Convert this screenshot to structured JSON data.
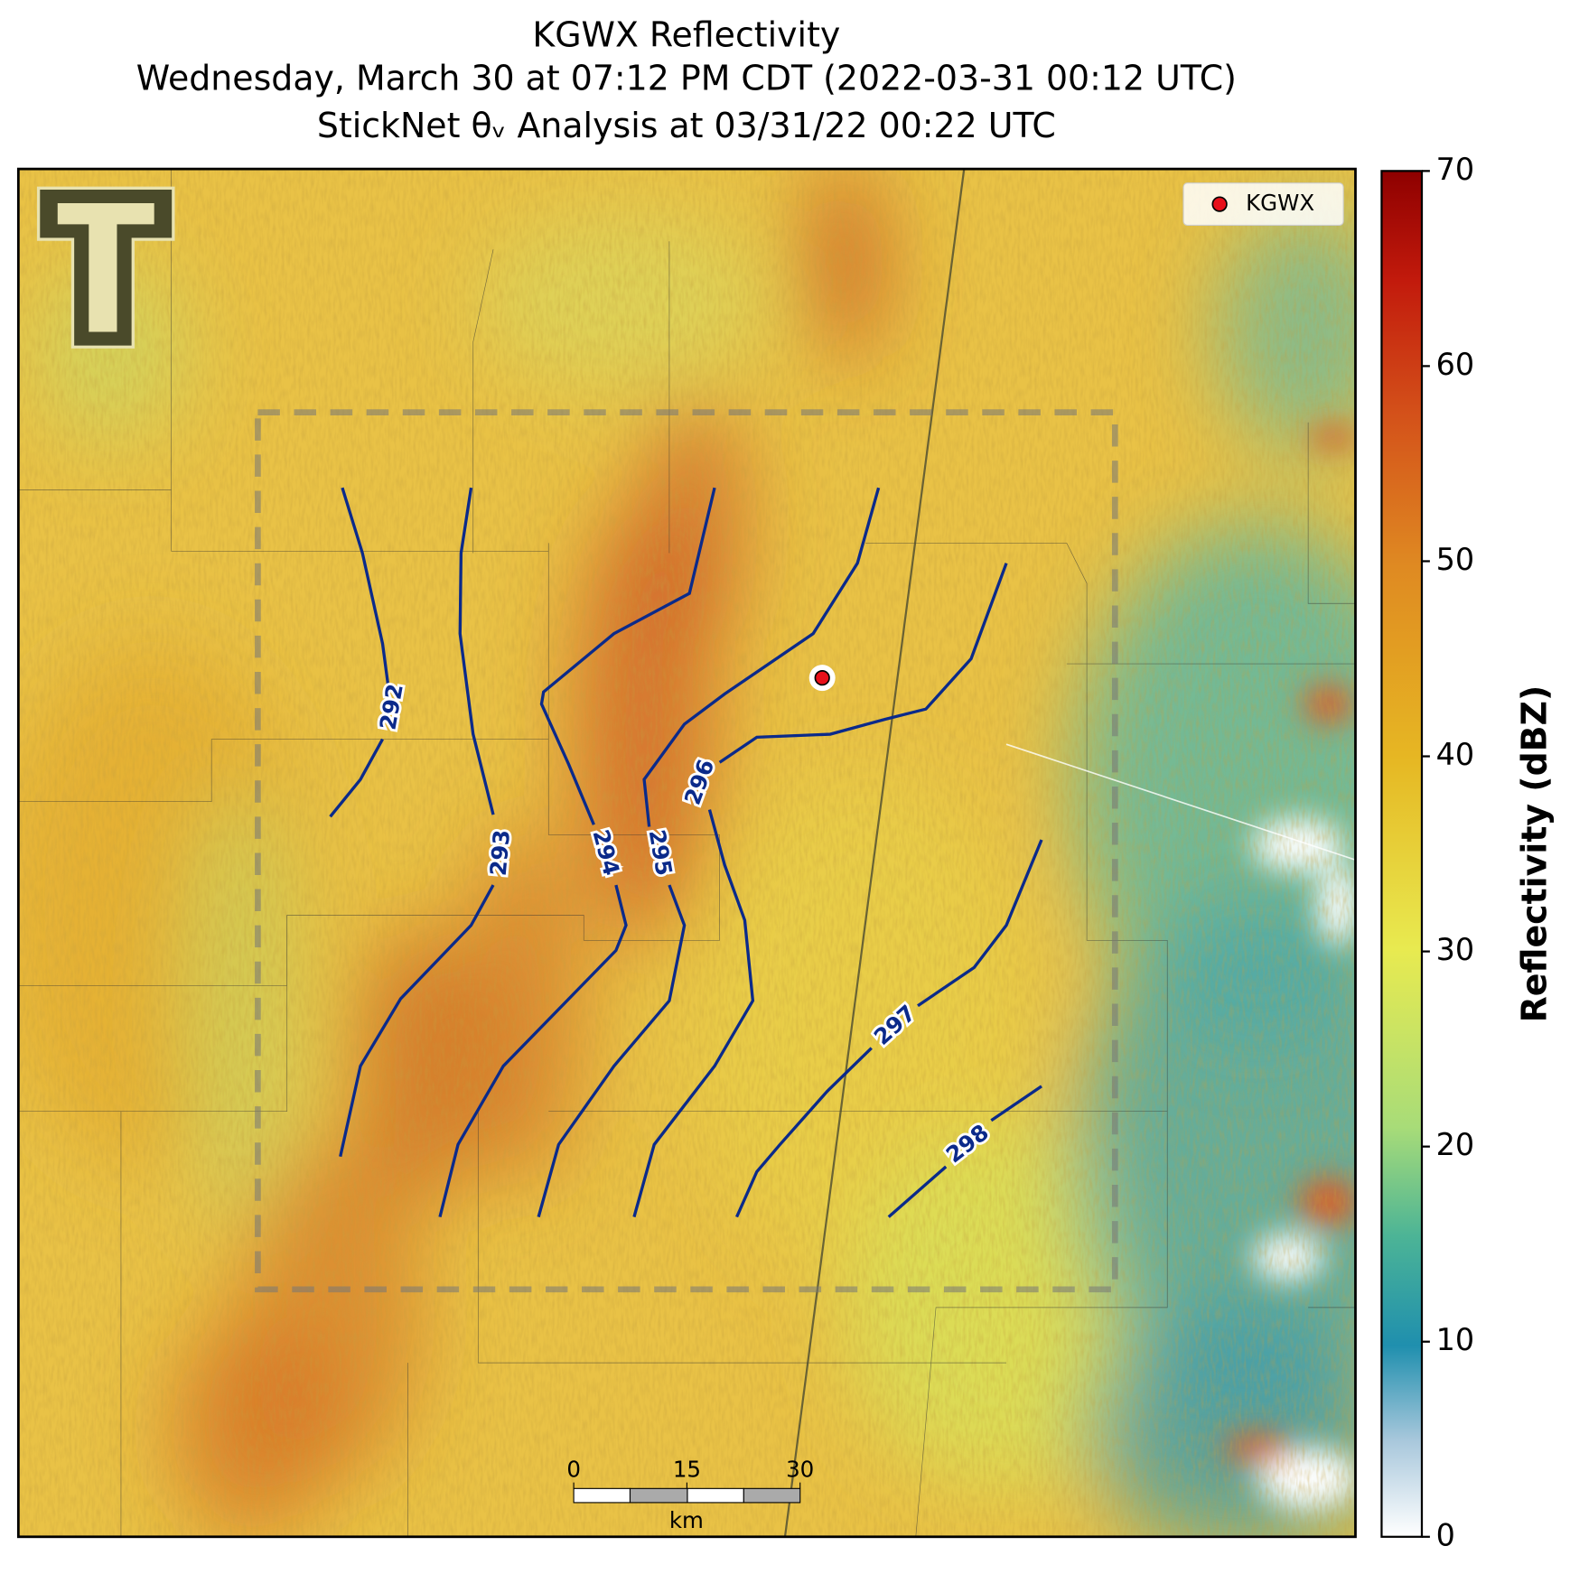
{
  "title": {
    "line1": "KGWX Reflectivity",
    "line2": "Wednesday, March 30 at 07:12 PM CDT (2022-03-31 00:12 UTC)",
    "line3": "StickNet θᵥ Analysis at 03/31/22 00:22 UTC"
  },
  "legend": {
    "label": "KGWX"
  },
  "colorbar": {
    "label": "Reflectivity (dBZ)",
    "lim": [
      0,
      70
    ],
    "ticks": [
      0,
      10,
      20,
      30,
      40,
      50,
      60,
      70
    ]
  },
  "contours": {
    "levels": [
      292,
      293,
      294,
      295,
      296,
      297,
      298
    ]
  },
  "scale_bar": {
    "ticks": [
      0,
      15,
      30
    ],
    "unit": "km"
  }
}
